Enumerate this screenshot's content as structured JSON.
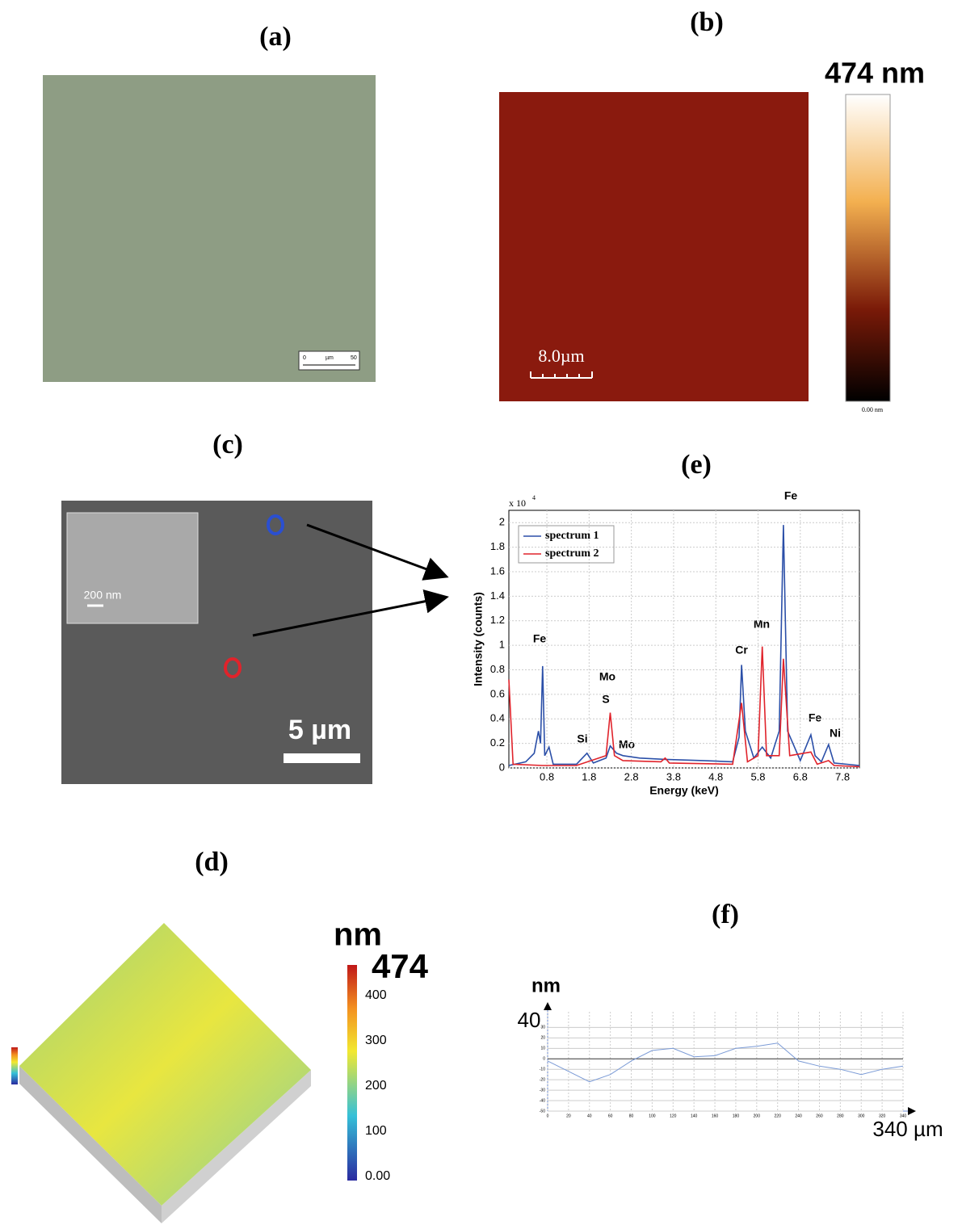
{
  "panels": {
    "a": {
      "label": "(a)",
      "scale": [
        "0",
        "µm",
        "50"
      ]
    },
    "b": {
      "label": "(b)",
      "colorbar_max": "474 nm",
      "colorbar_min": "0.00 nm",
      "scale": "8.0µm"
    },
    "c": {
      "label": "(c)",
      "inset_scale": "200 nm",
      "scale": "5 µm"
    },
    "d": {
      "label": "(d)",
      "unit": "nm",
      "max": "474",
      "ticks": [
        "400",
        "300",
        "200",
        "100",
        "0.00"
      ]
    },
    "e": {
      "label": "(e)",
      "multiplier": "x 10",
      "exponent": "4",
      "peaks": [
        "Fe",
        "Mo",
        "S",
        "Si",
        "Mo",
        "Cr",
        "Mn",
        "Fe",
        "Fe",
        "Ni"
      ]
    },
    "f": {
      "label": "(f)",
      "unit": "nm",
      "top": "40",
      "xmax": "340 µm"
    }
  },
  "chart_data": [
    {
      "type": "line",
      "x_label": "Energy (keV)",
      "y_label": "Intensity (counts)",
      "xlim": [
        -0.1,
        8.2
      ],
      "ylim": [
        0,
        2.1
      ],
      "xticks": [
        0.8,
        1.8,
        2.8,
        3.8,
        4.8,
        5.8,
        6.8,
        7.8
      ],
      "yticks": [
        0,
        0.2,
        0.4,
        0.6,
        0.8,
        1,
        1.2,
        1.4,
        1.6,
        1.8,
        2
      ],
      "grid": true,
      "legend": "upper left",
      "series": [
        {
          "name": "spectrum 1",
          "color": "#2b4fa8",
          "x": [
            -0.1,
            0.3,
            0.5,
            0.6,
            0.65,
            0.7,
            0.75,
            0.85,
            0.95,
            1.5,
            1.75,
            1.9,
            2.2,
            2.3,
            2.45,
            2.6,
            3.0,
            3.6,
            4.5,
            5.2,
            5.35,
            5.41,
            5.5,
            5.7,
            5.9,
            6.1,
            6.3,
            6.4,
            6.5,
            6.8,
            7.05,
            7.15,
            7.3,
            7.47,
            7.6,
            8.2
          ],
          "values": [
            0.02,
            0.05,
            0.12,
            0.3,
            0.2,
            0.83,
            0.1,
            0.17,
            0.03,
            0.03,
            0.12,
            0.04,
            0.08,
            0.18,
            0.12,
            0.1,
            0.08,
            0.07,
            0.06,
            0.05,
            0.25,
            0.84,
            0.3,
            0.08,
            0.17,
            0.08,
            0.3,
            1.98,
            0.3,
            0.06,
            0.27,
            0.1,
            0.05,
            0.19,
            0.04,
            0.02
          ]
        },
        {
          "name": "spectrum 2",
          "color": "#e0232b",
          "x": [
            -0.1,
            0.0,
            0.7,
            1.5,
            2.2,
            2.3,
            2.4,
            2.6,
            3.5,
            3.6,
            3.7,
            5.2,
            5.41,
            5.55,
            5.8,
            5.9,
            6.0,
            6.3,
            6.4,
            6.55,
            7.05,
            7.2,
            7.47,
            7.6,
            8.2
          ],
          "values": [
            0.72,
            0.03,
            0.02,
            0.02,
            0.1,
            0.45,
            0.1,
            0.06,
            0.05,
            0.08,
            0.04,
            0.03,
            0.53,
            0.05,
            0.1,
            0.99,
            0.1,
            0.1,
            0.89,
            0.1,
            0.13,
            0.03,
            0.06,
            0.02,
            0.01
          ]
        }
      ]
    },
    {
      "type": "line",
      "xlim": [
        0,
        340
      ],
      "ylim": [
        -50,
        45
      ],
      "xticks": [
        0,
        20,
        40,
        60,
        80,
        100,
        120,
        140,
        160,
        180,
        200,
        220,
        240,
        260,
        280,
        300,
        320,
        340
      ],
      "yticks": [
        30,
        20,
        10,
        0,
        -10,
        -20,
        -30,
        -40,
        -50
      ],
      "grid": true,
      "series": [
        {
          "color": "#7a9ad6",
          "x": [
            0,
            20,
            40,
            60,
            80,
            100,
            120,
            140,
            160,
            180,
            200,
            220,
            240,
            260,
            280,
            300,
            320,
            340
          ],
          "values": [
            -2,
            -12,
            -22,
            -15,
            -2,
            8,
            10,
            2,
            3,
            10,
            12,
            15,
            -2,
            -7,
            -10,
            -15,
            -10,
            -7
          ]
        }
      ]
    }
  ]
}
